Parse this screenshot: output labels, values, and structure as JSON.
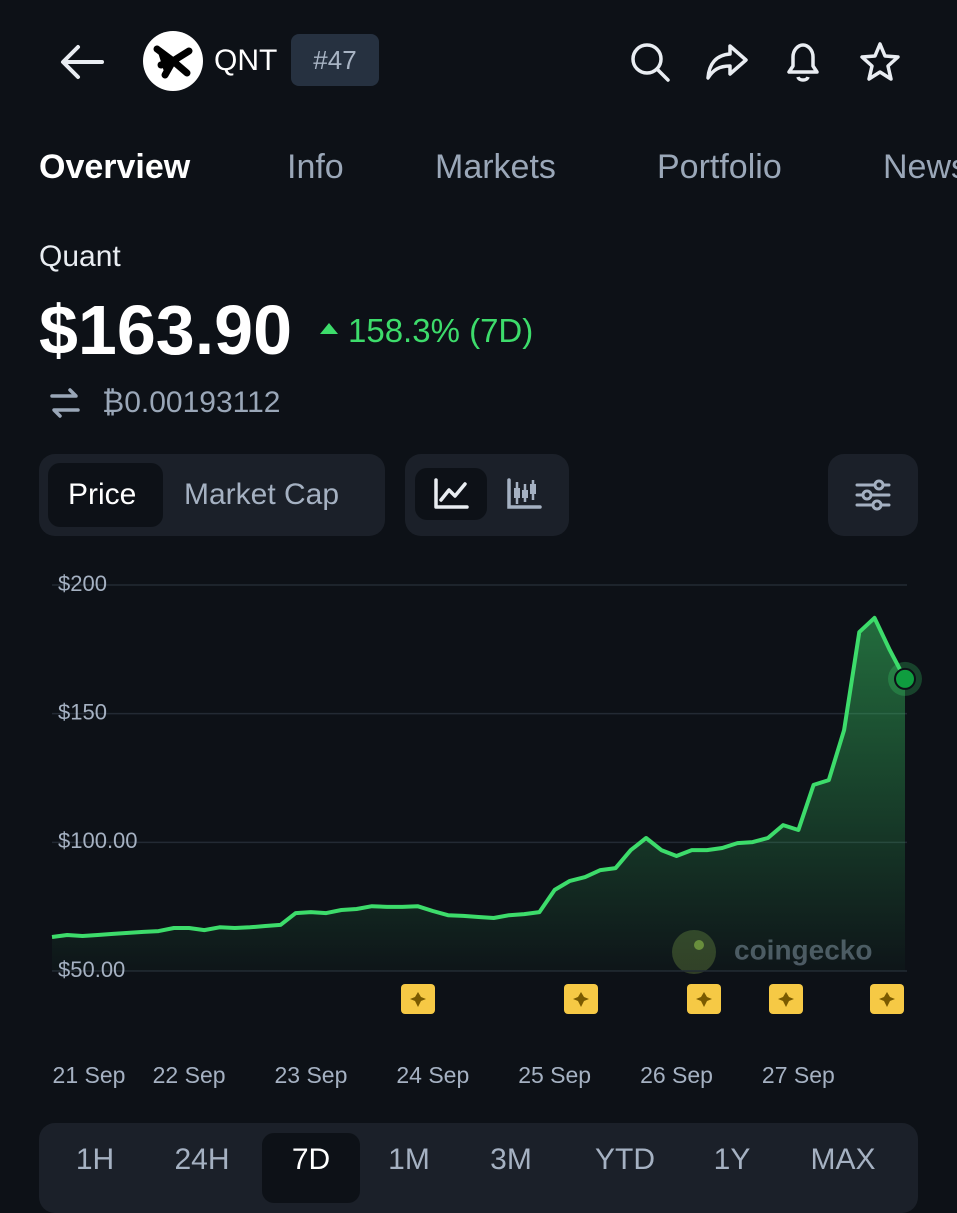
{
  "header": {
    "symbol": "QNT",
    "rank": "#47"
  },
  "tabs": [
    "Overview",
    "Info",
    "Markets",
    "Portfolio",
    "News"
  ],
  "coin": {
    "name": "Quant",
    "price": "$163.90",
    "change": "158.3% (7D)",
    "btc_price": "₿0.00193112"
  },
  "chart_toggle": [
    "Price",
    "Market Cap"
  ],
  "chart_data": {
    "type": "line",
    "categories": [
      null,
      "21 Sep",
      null,
      null,
      null,
      null,
      null,
      null,
      null,
      "22 Sep",
      null,
      null,
      null,
      null,
      null,
      null,
      null,
      "23 Sep",
      null,
      null,
      null,
      null,
      null,
      null,
      null,
      "24 Sep",
      null,
      null,
      null,
      null,
      null,
      null,
      null,
      "25 Sep",
      null,
      null,
      null,
      null,
      null,
      null,
      null,
      "26 Sep",
      null,
      null,
      null,
      null,
      null,
      null,
      null,
      "27 Sep",
      null,
      null,
      null,
      null,
      null,
      null,
      null
    ],
    "values": [
      63.2,
      64,
      63.6,
      64,
      64.4,
      64.8,
      65.2,
      65.5,
      66.7,
      66.7,
      65.9,
      67,
      66.7,
      67,
      67.5,
      67.9,
      72.5,
      72.9,
      72.5,
      73.7,
      74.1,
      75.2,
      74.9,
      74.9,
      75.2,
      73.3,
      71.7,
      71.4,
      71,
      70.6,
      71.7,
      72.1,
      72.9,
      81.5,
      85,
      86.5,
      89.2,
      90,
      97,
      101.7,
      97,
      94.7,
      97,
      97,
      97.8,
      99.7,
      100.1,
      101.7,
      106.7,
      104.8,
      122.3,
      124.2,
      143.6,
      181.7,
      187.2,
      174.7,
      163.5
    ],
    "color": "#3ddc6b",
    "ylim": [
      50,
      200
    ],
    "yticks": [
      {
        "value": 200,
        "label": "$200"
      },
      {
        "value": 150,
        "label": "$150"
      },
      {
        "value": 100,
        "label": "$100.00"
      },
      {
        "value": 50,
        "label": "$50.00"
      }
    ],
    "grid": true
  },
  "watermark": "coingecko",
  "ranges": [
    "1H",
    "24H",
    "7D",
    "1M",
    "3M",
    "YTD",
    "1Y",
    "MAX"
  ]
}
